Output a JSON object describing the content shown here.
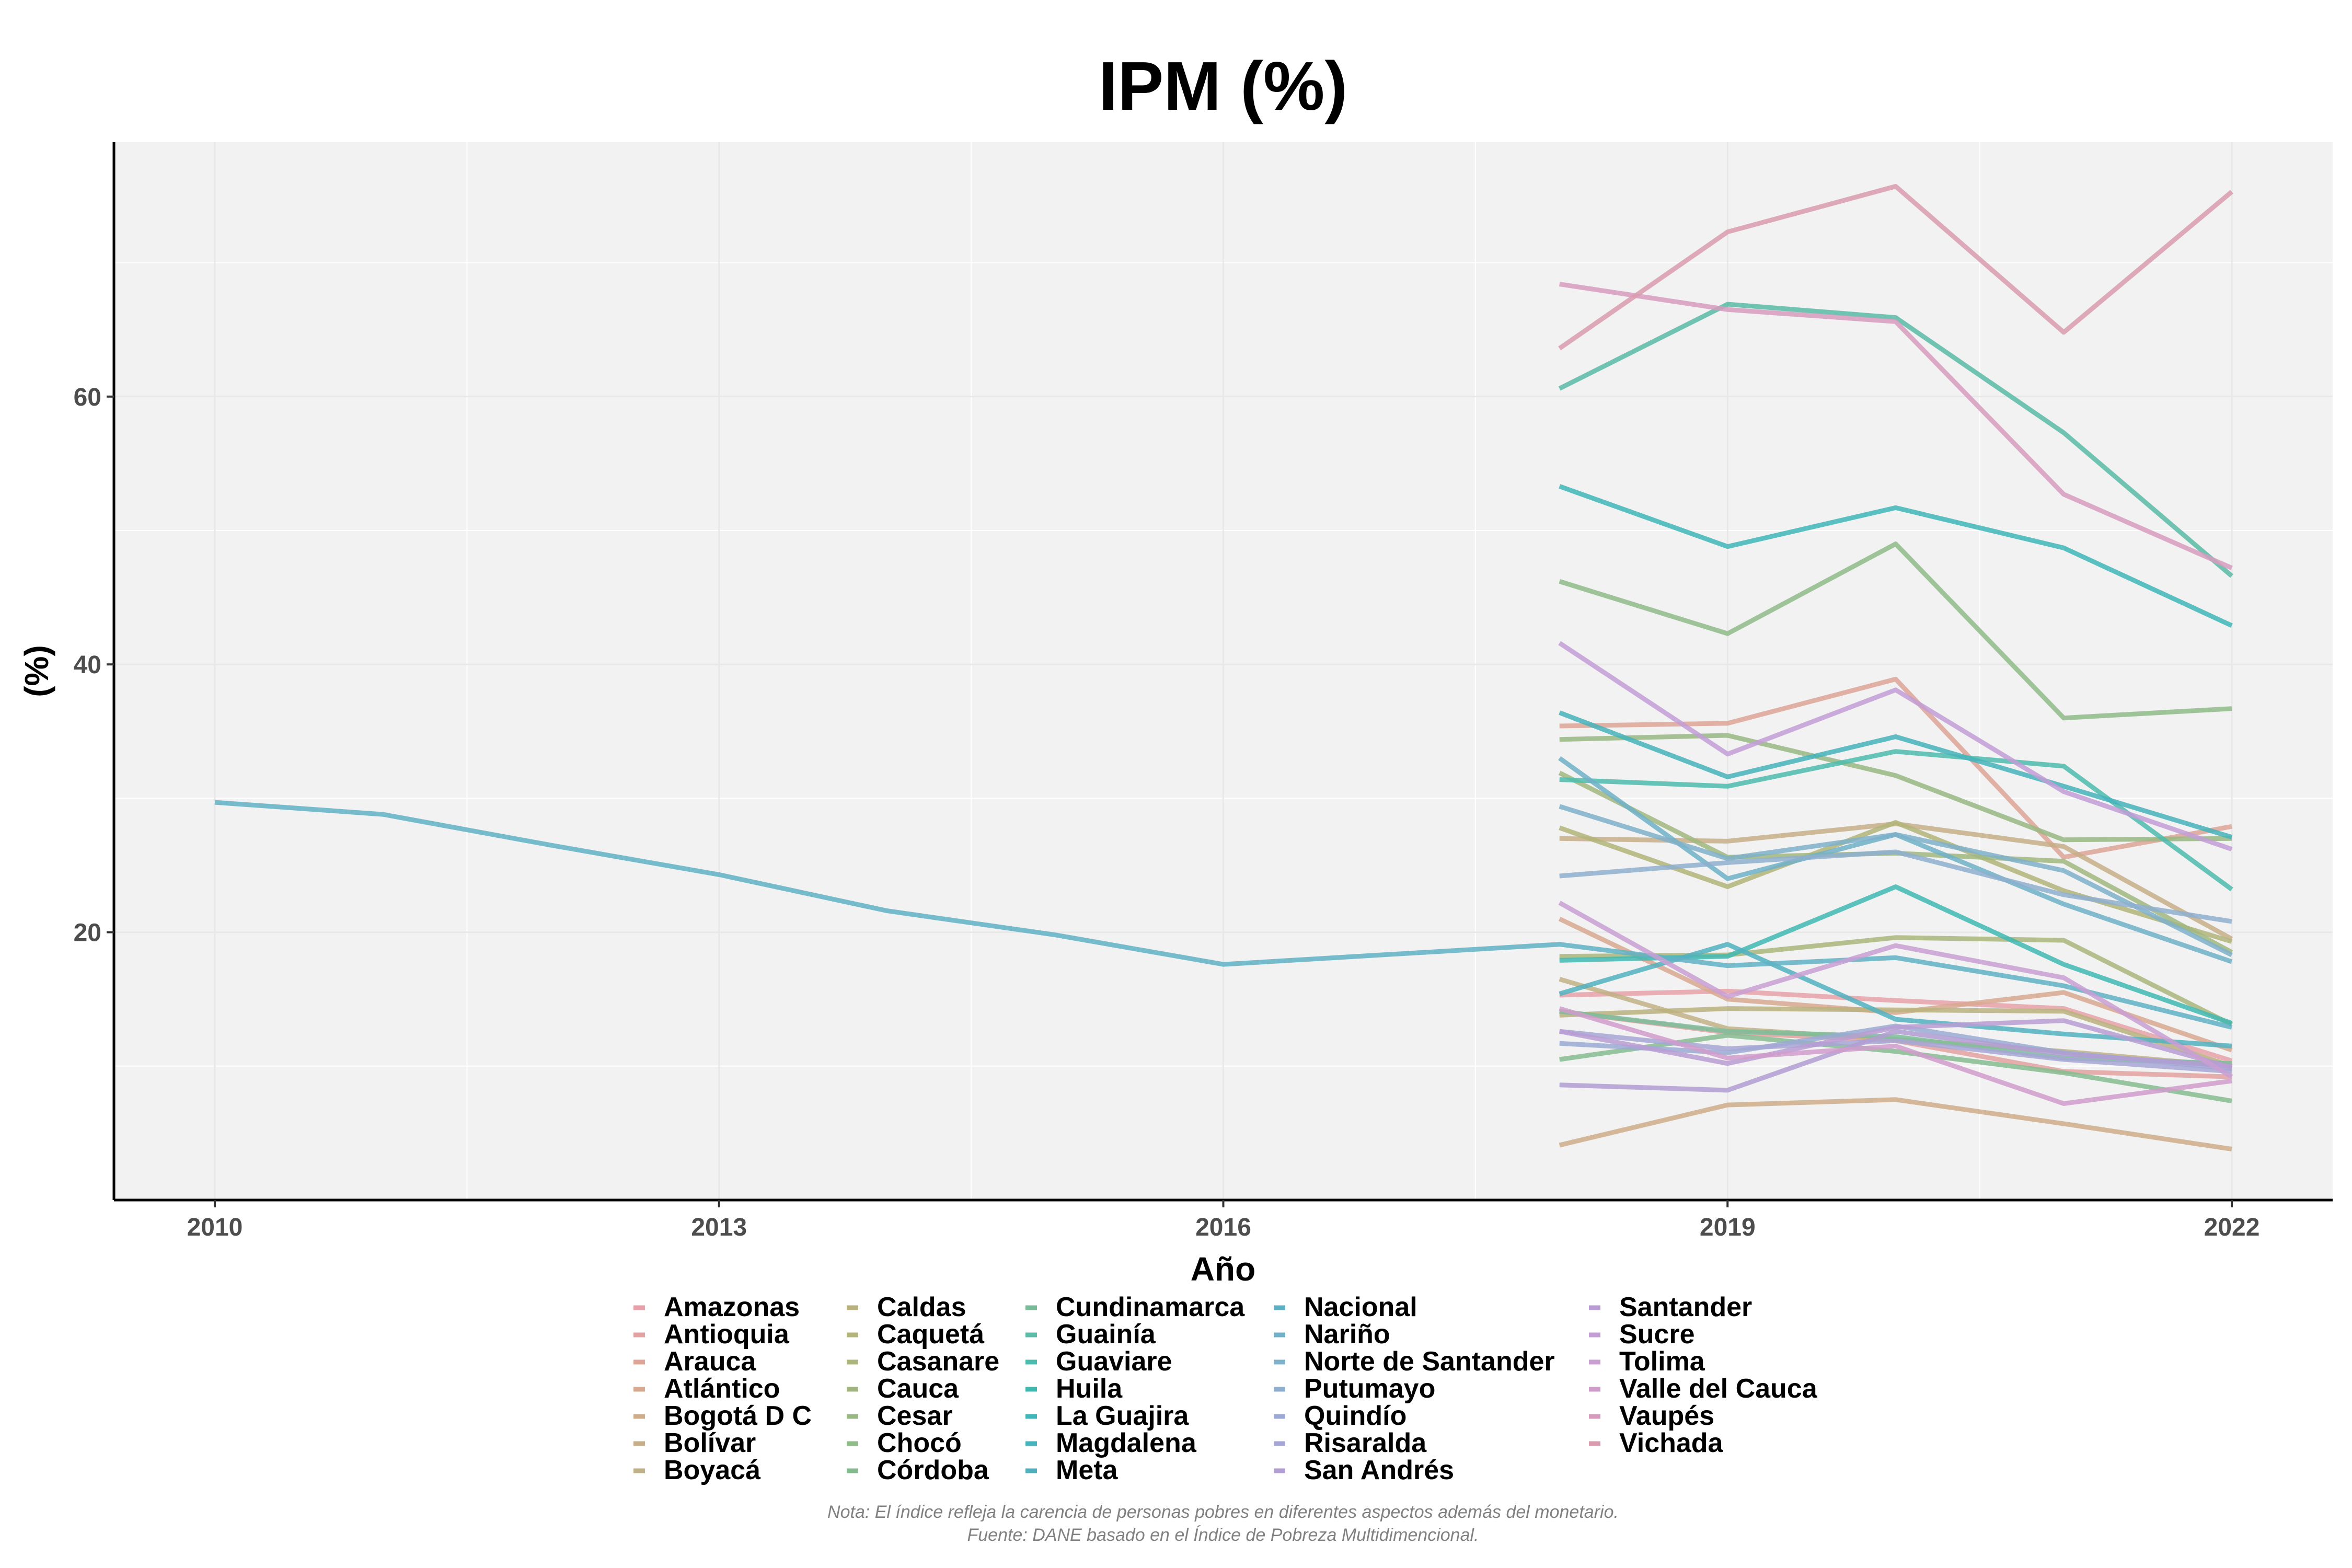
{
  "chart_data": {
    "type": "line",
    "title": "IPM (%)",
    "xlabel": "Año",
    "ylabel": "(%)",
    "xlim": [
      2009.4,
      2022.6
    ],
    "ylim": [
      0,
      79
    ],
    "x_ticks": [
      2010,
      2013,
      2016,
      2019,
      2022
    ],
    "y_ticks": [
      20,
      40,
      60
    ],
    "grid": true,
    "legend_position": "bottom",
    "x": [
      2018,
      2019,
      2020,
      2021,
      2022
    ],
    "series": [
      {
        "name": "Amazonas",
        "color": "#e8a1a9",
        "values": [
          15.3,
          15.6,
          14.9,
          14.3,
          10.4
        ]
      },
      {
        "name": "Antioquia",
        "color": "#e3a2a1",
        "values": [
          14.1,
          12.5,
          11.9,
          9.6,
          9.2
        ]
      },
      {
        "name": "Arauca",
        "color": "#dea596",
        "values": [
          35.4,
          35.6,
          38.9,
          25.6,
          27.9
        ]
      },
      {
        "name": "Atlántico",
        "color": "#d8a88f",
        "values": [
          21.0,
          15.0,
          14.0,
          15.5,
          11.2
        ]
      },
      {
        "name": "Bogotá D C",
        "color": "#cfac8a",
        "values": [
          4.1,
          7.1,
          7.5,
          5.7,
          3.8
        ]
      },
      {
        "name": "Bolívar",
        "color": "#c7ae88",
        "values": [
          27.0,
          26.8,
          28.1,
          26.4,
          19.5
        ]
      },
      {
        "name": "Boyacá",
        "color": "#c1b186",
        "values": [
          16.5,
          12.8,
          12.0,
          11.1,
          10.0
        ]
      },
      {
        "name": "Caldas",
        "color": "#bab27e",
        "values": [
          13.8,
          14.3,
          14.2,
          14.1,
          10.0
        ]
      },
      {
        "name": "Caquetá",
        "color": "#b2b479",
        "values": [
          27.8,
          23.4,
          28.2,
          23.1,
          19.3
        ]
      },
      {
        "name": "Casanare",
        "color": "#aab67b",
        "values": [
          18.2,
          18.3,
          19.6,
          19.4,
          13.1
        ]
      },
      {
        "name": "Cauca",
        "color": "#a1b77f",
        "values": [
          31.9,
          25.6,
          25.9,
          25.3,
          18.5
        ]
      },
      {
        "name": "Cesar",
        "color": "#98b983",
        "values": [
          34.4,
          34.7,
          31.7,
          26.9,
          27.0
        ]
      },
      {
        "name": "Chocó",
        "color": "#8fbb89",
        "values": [
          46.2,
          42.3,
          49.0,
          36.0,
          36.7
        ]
      },
      {
        "name": "Córdoba",
        "color": "#85bc8f",
        "values": [
          10.5,
          12.3,
          11.1,
          9.5,
          7.4
        ]
      },
      {
        "name": "Cundinamarca",
        "color": "#7bbd9a",
        "values": [
          14.1,
          12.6,
          12.2,
          10.6,
          10.2
        ]
      },
      {
        "name": "Guainía",
        "color": "#5bbba6",
        "values": [
          60.6,
          66.9,
          65.9,
          57.3,
          46.6
        ]
      },
      {
        "name": "Guaviare",
        "color": "#4cbbad",
        "values": [
          31.4,
          30.9,
          33.5,
          32.4,
          23.2
        ]
      },
      {
        "name": "Huila",
        "color": "#41b9b3",
        "values": [
          17.9,
          18.2,
          23.4,
          17.6,
          13.2
        ]
      },
      {
        "name": "La Guajira",
        "color": "#3fb6b8",
        "values": [
          53.3,
          48.8,
          51.7,
          48.7,
          42.9
        ]
      },
      {
        "name": "Magdalena",
        "color": "#45b3bb",
        "values": [
          36.4,
          31.6,
          34.6,
          30.9,
          27.1
        ]
      },
      {
        "name": "Meta",
        "color": "#52b1c1",
        "values": [
          15.4,
          19.1,
          13.5,
          12.4,
          11.5
        ]
      },
      {
        "name": "Nacional",
        "color": "#5fb1c6",
        "x": [
          2010,
          2011,
          2012,
          2013,
          2014,
          2015,
          2016,
          2018,
          2019,
          2020,
          2021,
          2022
        ],
        "values": [
          29.7,
          28.8,
          26.5,
          24.3,
          21.6,
          19.8,
          17.6,
          19.1,
          17.5,
          18.1,
          16.0,
          12.9
        ]
      },
      {
        "name": "Nariño",
        "color": "#6fb0c8",
        "values": [
          33.0,
          24.0,
          27.3,
          22.1,
          17.8
        ]
      },
      {
        "name": "Norte de Santander",
        "color": "#7eb0c9",
        "values": [
          29.4,
          25.5,
          27.3,
          24.6,
          18.3
        ]
      },
      {
        "name": "Putumayo",
        "color": "#8eafcf",
        "values": [
          24.2,
          25.2,
          26.0,
          22.8,
          20.8
        ]
      },
      {
        "name": "Quindío",
        "color": "#9aaad4",
        "values": [
          11.7,
          11.0,
          13.0,
          11.0,
          9.8
        ]
      },
      {
        "name": "Risaralda",
        "color": "#a6a6d6",
        "values": [
          12.6,
          11.3,
          11.9,
          10.5,
          9.6
        ]
      },
      {
        "name": "San Andrés",
        "color": "#b19ed4",
        "values": [
          8.6,
          8.2,
          12.6,
          10.9,
          10.0
        ]
      },
      {
        "name": "Santander",
        "color": "#ba9dd4",
        "values": [
          12.6,
          10.2,
          12.9,
          13.4,
          9.9
        ]
      },
      {
        "name": "Sucre",
        "color": "#c29dd6",
        "values": [
          41.6,
          33.3,
          38.1,
          30.5,
          26.2
        ]
      },
      {
        "name": "Tolima",
        "color": "#c99fd3",
        "values": [
          22.2,
          15.2,
          19.0,
          16.6,
          9.2
        ]
      },
      {
        "name": "Valle del Cauca",
        "color": "#d09ccb",
        "values": [
          14.3,
          10.6,
          11.5,
          7.2,
          8.9
        ]
      },
      {
        "name": "Vaupés",
        "color": "#d79bbe",
        "values": [
          68.4,
          66.5,
          65.6,
          52.7,
          47.2
        ]
      },
      {
        "name": "Vichada",
        "color": "#d99bae",
        "values": [
          63.6,
          72.3,
          75.7,
          64.8,
          75.3
        ]
      }
    ]
  },
  "caption": {
    "line1": "Nota: El índice refleja la carencia de personas pobres en diferentes aspectos además del monetario.",
    "line2": "Fuente: DANE basado en el Índice de Pobreza Multidimencional."
  }
}
